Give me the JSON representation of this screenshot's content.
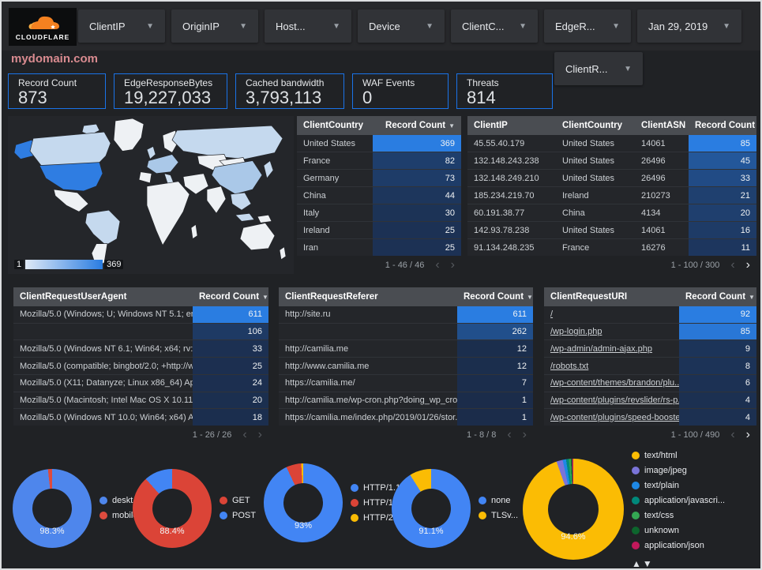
{
  "colors": {
    "accent_blue": "#1a73e8",
    "heat_low": "#1b2c4a",
    "heat_high": "#2a7de1"
  },
  "topbar": {
    "brand": "CLOUDFLARE",
    "filters": [
      "ClientIP",
      "OriginIP",
      "Host...",
      "Device",
      "ClientC...",
      "EdgeR...",
      "Jan 29, 2019"
    ],
    "filter_row2": "ClientR..."
  },
  "site_title": "mydomain.com",
  "scorecards": [
    {
      "label": "Record Count",
      "value": "873"
    },
    {
      "label": "EdgeResponseBytes",
      "value": "19,227,033"
    },
    {
      "label": "Cached bandwidth",
      "value": "3,793,113"
    },
    {
      "label": "WAF Events",
      "value": "0"
    },
    {
      "label": "Threats",
      "value": "814"
    }
  ],
  "map": {
    "legend_min": "1",
    "legend_max": "369"
  },
  "tables": {
    "client_country": {
      "grid": "1fr 112px",
      "columns": [
        {
          "label": "ClientCountry"
        },
        {
          "label": "Record Count",
          "sort": true,
          "right": true
        }
      ],
      "rows": [
        {
          "cells": [
            "United States"
          ],
          "count": 369
        },
        {
          "cells": [
            "France"
          ],
          "count": 82
        },
        {
          "cells": [
            "Germany"
          ],
          "count": 73
        },
        {
          "cells": [
            "China"
          ],
          "count": 44
        },
        {
          "cells": [
            "Italy"
          ],
          "count": 30
        },
        {
          "cells": [
            "Ireland"
          ],
          "count": 25
        },
        {
          "cells": [
            "Iran"
          ],
          "count": 25
        }
      ],
      "max": 369,
      "pagination": {
        "label": "1 - 46 / 46",
        "prev_active": false,
        "next_active": false
      }
    },
    "client_ip": {
      "grid": "112px 100px 1fr 86px",
      "columns": [
        {
          "label": "ClientIP"
        },
        {
          "label": "ClientCountry"
        },
        {
          "label": "ClientASN"
        },
        {
          "label": "Record Count",
          "sort": true,
          "right": true
        }
      ],
      "rows": [
        {
          "cells": [
            "45.55.40.179",
            "United States",
            "14061"
          ],
          "count": 85
        },
        {
          "cells": [
            "132.148.243.238",
            "United States",
            "26496"
          ],
          "count": 45
        },
        {
          "cells": [
            "132.148.249.210",
            "United States",
            "26496"
          ],
          "count": 33
        },
        {
          "cells": [
            "185.234.219.70",
            "Ireland",
            "210273"
          ],
          "count": 21
        },
        {
          "cells": [
            "60.191.38.77",
            "China",
            "4134"
          ],
          "count": 20
        },
        {
          "cells": [
            "142.93.78.238",
            "United States",
            "14061"
          ],
          "count": 16
        },
        {
          "cells": [
            "91.134.248.235",
            "France",
            "16276"
          ],
          "count": 11
        }
      ],
      "max": 85,
      "pagination": {
        "label": "1 - 100 / 300",
        "prev_active": false,
        "next_active": true
      }
    },
    "user_agent": {
      "grid": "1fr 96px",
      "columns": [
        {
          "label": "ClientRequestUserAgent"
        },
        {
          "label": "Record Count",
          "sort": true,
          "right": true
        }
      ],
      "rows": [
        {
          "cells": [
            "Mozilla/5.0 (Windows; U; Windows NT 5.1; en-U..."
          ],
          "count": 611
        },
        {
          "cells": [
            ""
          ],
          "count": 106
        },
        {
          "cells": [
            "Mozilla/5.0 (Windows NT 6.1; Win64; x64; rv:64..."
          ],
          "count": 33
        },
        {
          "cells": [
            "Mozilla/5.0 (compatible; bingbot/2.0; +http://w..."
          ],
          "count": 25
        },
        {
          "cells": [
            "Mozilla/5.0 (X11; Datanyze; Linux x86_64) Appl..."
          ],
          "count": 24
        },
        {
          "cells": [
            "Mozilla/5.0 (Macintosh; Intel Mac OS X 10.11; r..."
          ],
          "count": 20
        },
        {
          "cells": [
            "Mozilla/5.0 (Windows NT 10.0; Win64; x64) App..."
          ],
          "count": 18
        }
      ],
      "max": 611,
      "pagination": {
        "label": "1 - 26 / 26",
        "prev_active": false,
        "next_active": false
      }
    },
    "referer": {
      "grid": "1fr 96px",
      "columns": [
        {
          "label": "ClientRequestReferer"
        },
        {
          "label": "Record Count",
          "sort": true,
          "right": true
        }
      ],
      "rows": [
        {
          "cells": [
            "http://site.ru"
          ],
          "count": 611
        },
        {
          "cells": [
            ""
          ],
          "count": 262
        },
        {
          "cells": [
            "http://camilia.me"
          ],
          "count": 12
        },
        {
          "cells": [
            "http://www.camilia.me"
          ],
          "count": 12
        },
        {
          "cells": [
            "https://camilia.me/"
          ],
          "count": 7
        },
        {
          "cells": [
            "http://camilia.me/wp-cron.php?doing_wp_cron..."
          ],
          "count": 1
        },
        {
          "cells": [
            "https://camilia.me/index.php/2019/01/26/stor..."
          ],
          "count": 1
        }
      ],
      "max": 611,
      "pagination": {
        "label": "1 - 8 / 8",
        "prev_active": false,
        "next_active": false
      }
    },
    "uri": {
      "grid": "1fr 98px",
      "link_rows": true,
      "columns": [
        {
          "label": "ClientRequestURI"
        },
        {
          "label": "Record Count",
          "sort": true,
          "right": true
        }
      ],
      "rows": [
        {
          "cells": [
            "/"
          ],
          "count": 92
        },
        {
          "cells": [
            "/wp-login.php"
          ],
          "count": 85
        },
        {
          "cells": [
            "/wp-admin/admin-ajax.php"
          ],
          "count": 9
        },
        {
          "cells": [
            "/robots.txt"
          ],
          "count": 8
        },
        {
          "cells": [
            "/wp-content/themes/brandon/plu..."
          ],
          "count": 6
        },
        {
          "cells": [
            "/wp-content/plugins/revslider/rs-p..."
          ],
          "count": 4
        },
        {
          "cells": [
            "/wp-content/plugins/speed-booste..."
          ],
          "count": 4
        }
      ],
      "max": 92,
      "pagination": {
        "label": "1 - 100 / 490",
        "prev_active": false,
        "next_active": true
      }
    }
  },
  "donuts": [
    {
      "name": "device",
      "size": 100,
      "center_label": "98.3%",
      "legend_arrows": false,
      "wrap": false,
      "segments": [
        {
          "label": "deskt...",
          "value": 98.3,
          "color": "#4e86ec"
        },
        {
          "label": "mobile",
          "value": 1.7,
          "color": "#dd4b3e"
        }
      ]
    },
    {
      "name": "request-method",
      "size": 100,
      "center_label": "88.4%",
      "legend_arrows": false,
      "wrap": false,
      "segments": [
        {
          "label": "GET",
          "value": 88.4,
          "color": "#db4437"
        },
        {
          "label": "POST",
          "value": 11.6,
          "color": "#4285f4"
        }
      ]
    },
    {
      "name": "http-version",
      "size": 100,
      "center_label": "93%",
      "legend_arrows": false,
      "wrap": true,
      "segments": [
        {
          "label": "HTTP/1.1",
          "value": 93,
          "color": "#4285f4"
        },
        {
          "label": "HTTP/1.0",
          "value": 6.2,
          "color": "#db4437"
        },
        {
          "label": "HTTP/2",
          "value": 0.8,
          "color": "#fbbc04"
        }
      ]
    },
    {
      "name": "tls-version",
      "size": 100,
      "center_label": "91.1%",
      "legend_arrows": false,
      "wrap": false,
      "segments": [
        {
          "label": "none",
          "value": 91.1,
          "color": "#4285f4"
        },
        {
          "label": "TLSv...",
          "value": 8.9,
          "color": "#fbbc04"
        }
      ]
    },
    {
      "name": "content-type",
      "size": 128,
      "center_label": "94.6%",
      "legend_arrows": true,
      "wrap": false,
      "segments": [
        {
          "label": "text/html",
          "value": 94.6,
          "color": "#fbbc04"
        },
        {
          "label": "image/jpeg",
          "value": 2.0,
          "color": "#7a74d8"
        },
        {
          "label": "text/plain",
          "value": 1.1,
          "color": "#1e88e5"
        },
        {
          "label": "application/javascri...",
          "value": 0.9,
          "color": "#00897b"
        },
        {
          "label": "text/css",
          "value": 0.6,
          "color": "#34a853"
        },
        {
          "label": "unknown",
          "value": 0.4,
          "color": "#0d652d"
        },
        {
          "label": "application/json",
          "value": 0.4,
          "color": "#c2185b"
        }
      ]
    }
  ],
  "donut_sort_arrows": "▲▼"
}
